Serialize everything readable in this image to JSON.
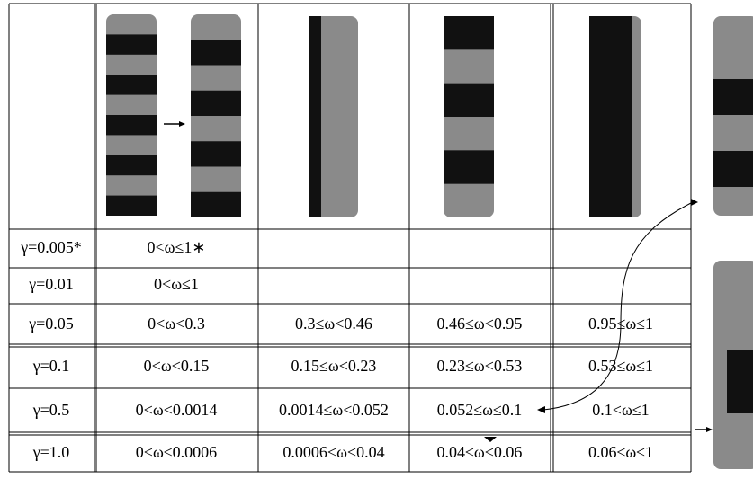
{
  "table": {
    "rows": [
      [
        "γ=0.005*",
        "0<ω≤1∗"
      ],
      [
        "γ=0.01",
        "0<ω≤1"
      ],
      [
        "γ=0.05",
        "0<ω<0.3",
        "0.3≤ω<0.46",
        "0.46≤ω<0.95",
        "0.95≤ω≤1"
      ],
      [
        "γ=0.1",
        "0<ω<0.15",
        "0.15≤ω<0.23",
        "0.23≤ω<0.53",
        "0.53≤ω≤1"
      ],
      [
        "γ=0.5",
        "0<ω<0.0014",
        "0.0014≤ω<0.052",
        "0.052≤ω≤0.1",
        "0.1<ω≤1"
      ],
      [
        "γ=1.0",
        "0<ω≤0.0006",
        "0.0006<ω<0.04",
        "0.04≤ω<0.06",
        "0.06≤ω≤1"
      ]
    ]
  }
}
